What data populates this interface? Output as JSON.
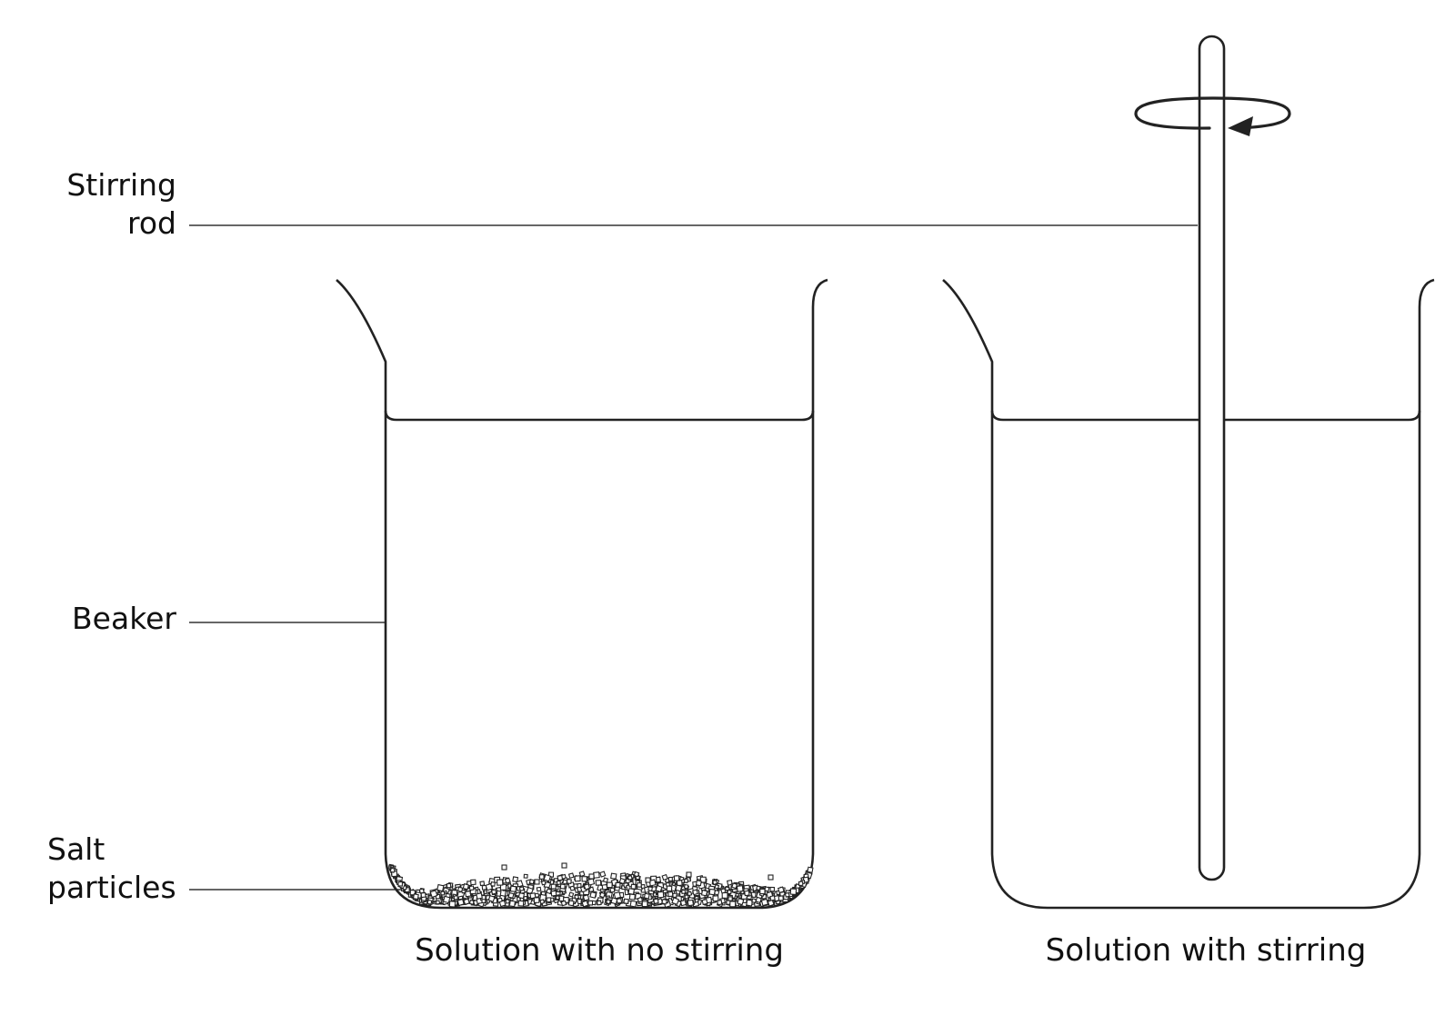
{
  "labels": {
    "stirring_rod": {
      "line1": "Stirring",
      "line2": "rod"
    },
    "beaker": "Beaker",
    "salt_particles": {
      "line1": "Salt",
      "line2": "particles"
    }
  },
  "captions": {
    "left": "Solution with no stirring",
    "right": "Solution with stirring"
  }
}
